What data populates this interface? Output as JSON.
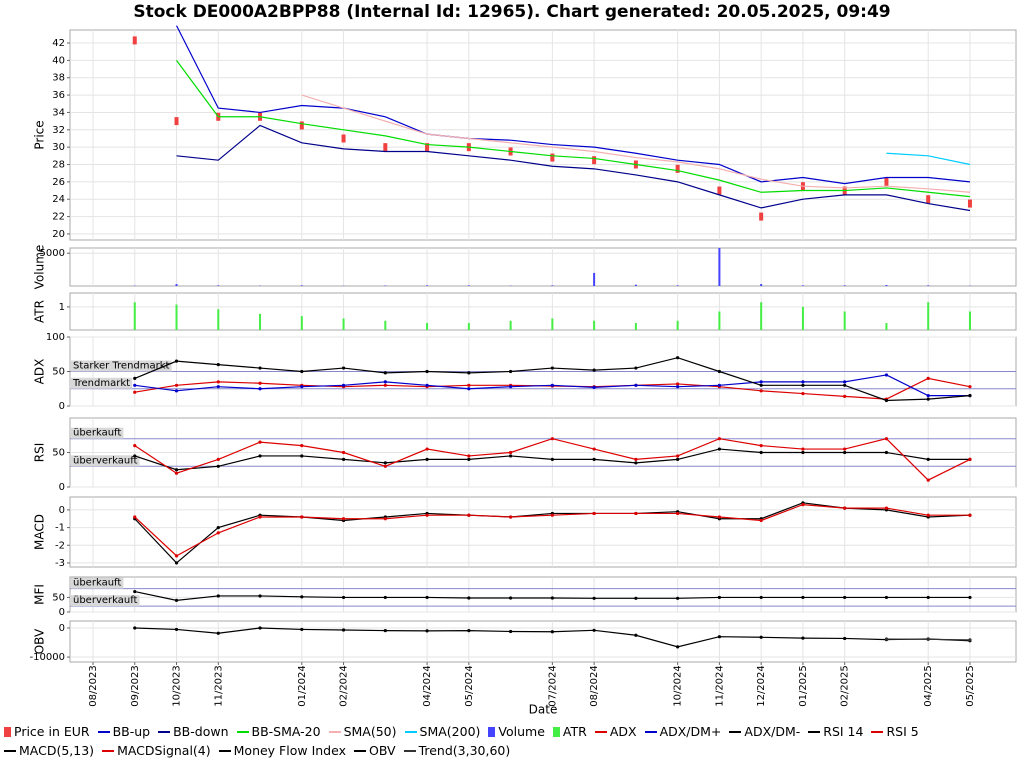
{
  "chart_data": [
    {
      "type": "line",
      "title": "Stock DE000A2BPP88 (Internal Id: 12965). Chart generated: 20.05.2025, 09:49",
      "ylabel": "Price",
      "x": [
        "09/2023",
        "10/2023",
        "11/2023",
        "12/2023",
        "01/2024",
        "02/2024",
        "03/2024",
        "04/2024",
        "05/2024",
        "06/2024",
        "07/2024",
        "08/2024",
        "09/2024",
        "10/2024",
        "11/2024",
        "12/2024",
        "01/2025",
        "02/2025",
        "03/2025",
        "04/2025",
        "05/2025"
      ],
      "ylim": [
        19.3,
        43.5
      ],
      "yticks": [
        20,
        22,
        24,
        26,
        28,
        30,
        32,
        34,
        36,
        38,
        40,
        42
      ],
      "series": [
        {
          "name": "Price in EUR",
          "type": "bar",
          "color": "#f04040",
          "values": [
            42.3,
            33,
            33.5,
            33.5,
            32.5,
            31,
            30,
            30,
            30,
            29.5,
            28.8,
            28.5,
            28,
            27.5,
            25,
            22,
            25.5,
            25,
            26,
            24,
            23.5
          ]
        },
        {
          "name": "BB-up",
          "color": "#0000cc",
          "values": [
            null,
            44,
            34.5,
            34,
            34.8,
            34.5,
            33.5,
            31.5,
            31,
            30.8,
            30.3,
            30,
            29.3,
            28.5,
            28,
            26,
            26.5,
            25.8,
            26.5,
            26.5,
            26
          ]
        },
        {
          "name": "BB-down",
          "color": "#00008b",
          "values": [
            null,
            29,
            28.5,
            32.5,
            30.5,
            29.8,
            29.5,
            29.5,
            29,
            28.5,
            27.8,
            27.5,
            26.8,
            26,
            24.5,
            23,
            24,
            24.5,
            24.5,
            23.5,
            22.7
          ]
        },
        {
          "name": "BB-SMA-20",
          "color": "#00dd00",
          "values": [
            null,
            40,
            33.5,
            33.5,
            32.7,
            32,
            31.3,
            30.3,
            30,
            29.5,
            29,
            28.7,
            28,
            27.3,
            26.2,
            24.8,
            25,
            25,
            25.3,
            24.8,
            24.3
          ]
        },
        {
          "name": "SMA(50)",
          "color": "#f4b0b0",
          "values": [
            null,
            null,
            null,
            null,
            36,
            34.5,
            33,
            31.5,
            31,
            30.5,
            30,
            29.5,
            28.8,
            28.3,
            27.5,
            26.3,
            25.5,
            25.3,
            25.5,
            25.2,
            24.8
          ]
        },
        {
          "name": "SMA(200)",
          "color": "#00ccff",
          "values": [
            null,
            null,
            null,
            null,
            null,
            null,
            null,
            null,
            null,
            null,
            null,
            null,
            null,
            null,
            null,
            null,
            null,
            null,
            29.3,
            29,
            28
          ]
        }
      ]
    },
    {
      "type": "bar",
      "ylabel": "Volume",
      "x": [
        "09/2023",
        "10/2023",
        "11/2023",
        "12/2023",
        "01/2024",
        "02/2024",
        "03/2024",
        "04/2024",
        "05/2024",
        "06/2024",
        "07/2024",
        "08/2024",
        "09/2024",
        "10/2024",
        "11/2024",
        "12/2024",
        "01/2025",
        "02/2025",
        "03/2025",
        "04/2025",
        "05/2025"
      ],
      "ylim": [
        0,
        5800
      ],
      "yticks": [
        5000
      ],
      "series": [
        {
          "name": "Volume",
          "color": "#4444ff",
          "values": [
            50,
            300,
            100,
            50,
            100,
            50,
            80,
            100,
            100,
            50,
            100,
            2000,
            200,
            100,
            5800,
            300,
            100,
            100,
            150,
            100,
            50
          ]
        }
      ]
    },
    {
      "type": "bar",
      "ylabel": "ATR",
      "x": [
        "09/2023",
        "10/2023",
        "11/2023",
        "12/2023",
        "01/2024",
        "02/2024",
        "03/2024",
        "04/2024",
        "05/2024",
        "06/2024",
        "07/2024",
        "08/2024",
        "09/2024",
        "10/2024",
        "11/2024",
        "12/2024",
        "01/2025",
        "02/2025",
        "03/2025",
        "04/2025",
        "05/2025"
      ],
      "ylim": [
        0,
        1.6
      ],
      "yticks": [
        1
      ],
      "series": [
        {
          "name": "ATR",
          "color": "#44ee44",
          "values": [
            1.2,
            1.1,
            0.9,
            0.7,
            0.6,
            0.5,
            0.4,
            0.3,
            0.3,
            0.4,
            0.5,
            0.4,
            0.3,
            0.4,
            0.8,
            1.2,
            1.0,
            0.8,
            0.3,
            1.2,
            0.8
          ]
        }
      ]
    },
    {
      "type": "line",
      "ylabel": "ADX",
      "x": [
        "09/2023",
        "10/2023",
        "11/2023",
        "12/2023",
        "01/2024",
        "02/2024",
        "03/2024",
        "04/2024",
        "05/2024",
        "06/2024",
        "07/2024",
        "08/2024",
        "09/2024",
        "10/2024",
        "11/2024",
        "12/2024",
        "01/2025",
        "02/2025",
        "03/2025",
        "04/2025",
        "05/2025"
      ],
      "ylim": [
        0,
        100
      ],
      "yticks": [
        0,
        50,
        100
      ],
      "annotations": [
        {
          "text": "Starker Trendmarkt",
          "value": 50
        },
        {
          "text": "Trendmarkt",
          "value": 25
        }
      ],
      "series": [
        {
          "name": "ADX",
          "color": "#dd0000",
          "values": [
            20,
            30,
            35,
            33,
            30,
            28,
            30,
            28,
            30,
            30,
            29,
            28,
            30,
            32,
            28,
            22,
            18,
            14,
            10,
            40,
            28
          ]
        },
        {
          "name": "ADX/DM+",
          "color": "#0000cc",
          "values": [
            30,
            22,
            28,
            25,
            28,
            30,
            35,
            30,
            25,
            28,
            30,
            27,
            30,
            28,
            30,
            35,
            35,
            35,
            45,
            15,
            15
          ]
        },
        {
          "name": "ADX/DM-",
          "color": "#000000",
          "values": [
            40,
            65,
            60,
            55,
            50,
            55,
            48,
            50,
            48,
            50,
            55,
            52,
            55,
            70,
            50,
            30,
            30,
            30,
            8,
            10,
            15
          ]
        }
      ]
    },
    {
      "type": "line",
      "ylabel": "RSI",
      "x": [
        "09/2023",
        "10/2023",
        "11/2023",
        "12/2023",
        "01/2024",
        "02/2024",
        "03/2024",
        "04/2024",
        "05/2024",
        "06/2024",
        "07/2024",
        "08/2024",
        "09/2024",
        "10/2024",
        "11/2024",
        "12/2024",
        "01/2025",
        "02/2025",
        "03/2025",
        "04/2025",
        "05/2025"
      ],
      "ylim": [
        0,
        100
      ],
      "yticks": [
        0,
        50
      ],
      "annotations": [
        {
          "text": "überkauft",
          "value": 70
        },
        {
          "text": "überverkauft",
          "value": 30
        }
      ],
      "series": [
        {
          "name": "RSI 14",
          "color": "#000000",
          "values": [
            45,
            25,
            30,
            45,
            45,
            40,
            35,
            40,
            40,
            45,
            40,
            40,
            35,
            40,
            55,
            50,
            50,
            50,
            50,
            40,
            40
          ]
        },
        {
          "name": "RSI 5",
          "color": "#dd0000",
          "values": [
            60,
            20,
            40,
            65,
            60,
            50,
            30,
            55,
            45,
            50,
            70,
            55,
            40,
            45,
            70,
            60,
            55,
            55,
            70,
            10,
            40
          ]
        }
      ]
    },
    {
      "type": "line",
      "ylabel": "MACD",
      "x": [
        "09/2023",
        "10/2023",
        "11/2023",
        "12/2023",
        "01/2024",
        "02/2024",
        "03/2024",
        "04/2024",
        "05/2024",
        "06/2024",
        "07/2024",
        "08/2024",
        "09/2024",
        "10/2024",
        "11/2024",
        "12/2024",
        "01/2025",
        "02/2025",
        "03/2025",
        "04/2025",
        "05/2025"
      ],
      "ylim": [
        -3.23,
        0.73
      ],
      "yticks": [
        -3,
        -2,
        -1,
        0
      ],
      "series": [
        {
          "name": "MACD(5,13)",
          "color": "#000000",
          "values": [
            -0.5,
            -3,
            -1,
            -0.3,
            -0.4,
            -0.6,
            -0.4,
            -0.2,
            -0.3,
            -0.4,
            -0.2,
            -0.2,
            -0.2,
            -0.1,
            -0.5,
            -0.5,
            0.4,
            0.1,
            0,
            -0.4,
            -0.3
          ]
        },
        {
          "name": "MACDSignal(4)",
          "color": "#dd0000",
          "values": [
            -0.4,
            -2.6,
            -1.3,
            -0.4,
            -0.4,
            -0.5,
            -0.5,
            -0.3,
            -0.3,
            -0.4,
            -0.3,
            -0.2,
            -0.2,
            -0.2,
            -0.4,
            -0.6,
            0.3,
            0.1,
            0.1,
            -0.3,
            -0.3
          ]
        }
      ]
    },
    {
      "type": "line",
      "ylabel": "MFI",
      "x": [
        "09/2023",
        "10/2023",
        "11/2023",
        "12/2023",
        "01/2024",
        "02/2024",
        "03/2024",
        "04/2024",
        "05/2024",
        "06/2024",
        "07/2024",
        "08/2024",
        "09/2024",
        "10/2024",
        "11/2024",
        "12/2024",
        "01/2025",
        "02/2025",
        "03/2025",
        "04/2025",
        "05/2025"
      ],
      "ylim": [
        0,
        120
      ],
      "yticks": [
        0,
        50
      ],
      "annotations": [
        {
          "text": "überkauft",
          "value": 80
        },
        {
          "text": "überverkauft",
          "value": 20
        }
      ],
      "series": [
        {
          "name": "Money Flow Index",
          "color": "#000000",
          "values": [
            70,
            40,
            55,
            55,
            52,
            50,
            50,
            50,
            48,
            48,
            48,
            47,
            47,
            47,
            50,
            50,
            50,
            50,
            50,
            50,
            50
          ]
        }
      ]
    },
    {
      "type": "line",
      "ylabel": "OBV",
      "xlabel": "Date",
      "x": [
        "09/2023",
        "10/2023",
        "11/2023",
        "12/2023",
        "01/2024",
        "02/2024",
        "03/2024",
        "04/2024",
        "05/2024",
        "06/2024",
        "07/2024",
        "08/2024",
        "09/2024",
        "10/2024",
        "11/2024",
        "12/2024",
        "01/2025",
        "02/2025",
        "03/2025",
        "04/2025",
        "05/2025"
      ],
      "ylim": [
        -11700,
        2400
      ],
      "yticks": [
        -10000,
        0
      ],
      "xticks": [
        "08/2023",
        "09/2023",
        "10/2023",
        "11/2023",
        "01/2024",
        "02/2024",
        "04/2024",
        "05/2024",
        "07/2024",
        "08/2024",
        "10/2024",
        "11/2024",
        "12/2024",
        "01/2025",
        "02/2025",
        "04/2025",
        "05/2025"
      ],
      "series": [
        {
          "name": "OBV",
          "color": "#000000",
          "values": [
            0,
            -500,
            -1800,
            0,
            -500,
            -700,
            -900,
            -1000,
            -900,
            -1200,
            -1300,
            -800,
            -2500,
            -6500,
            -3000,
            -3200,
            -3500,
            -3600,
            -4000,
            -3800,
            -4400
          ]
        },
        {
          "name": "Trend(3,30,60)",
          "color": "#333333",
          "values": [
            null,
            null,
            null,
            null,
            null,
            null,
            null,
            null,
            null,
            null,
            null,
            null,
            null,
            null,
            null,
            null,
            null,
            null,
            -3800,
            -3900,
            -4100
          ]
        }
      ]
    }
  ]
}
